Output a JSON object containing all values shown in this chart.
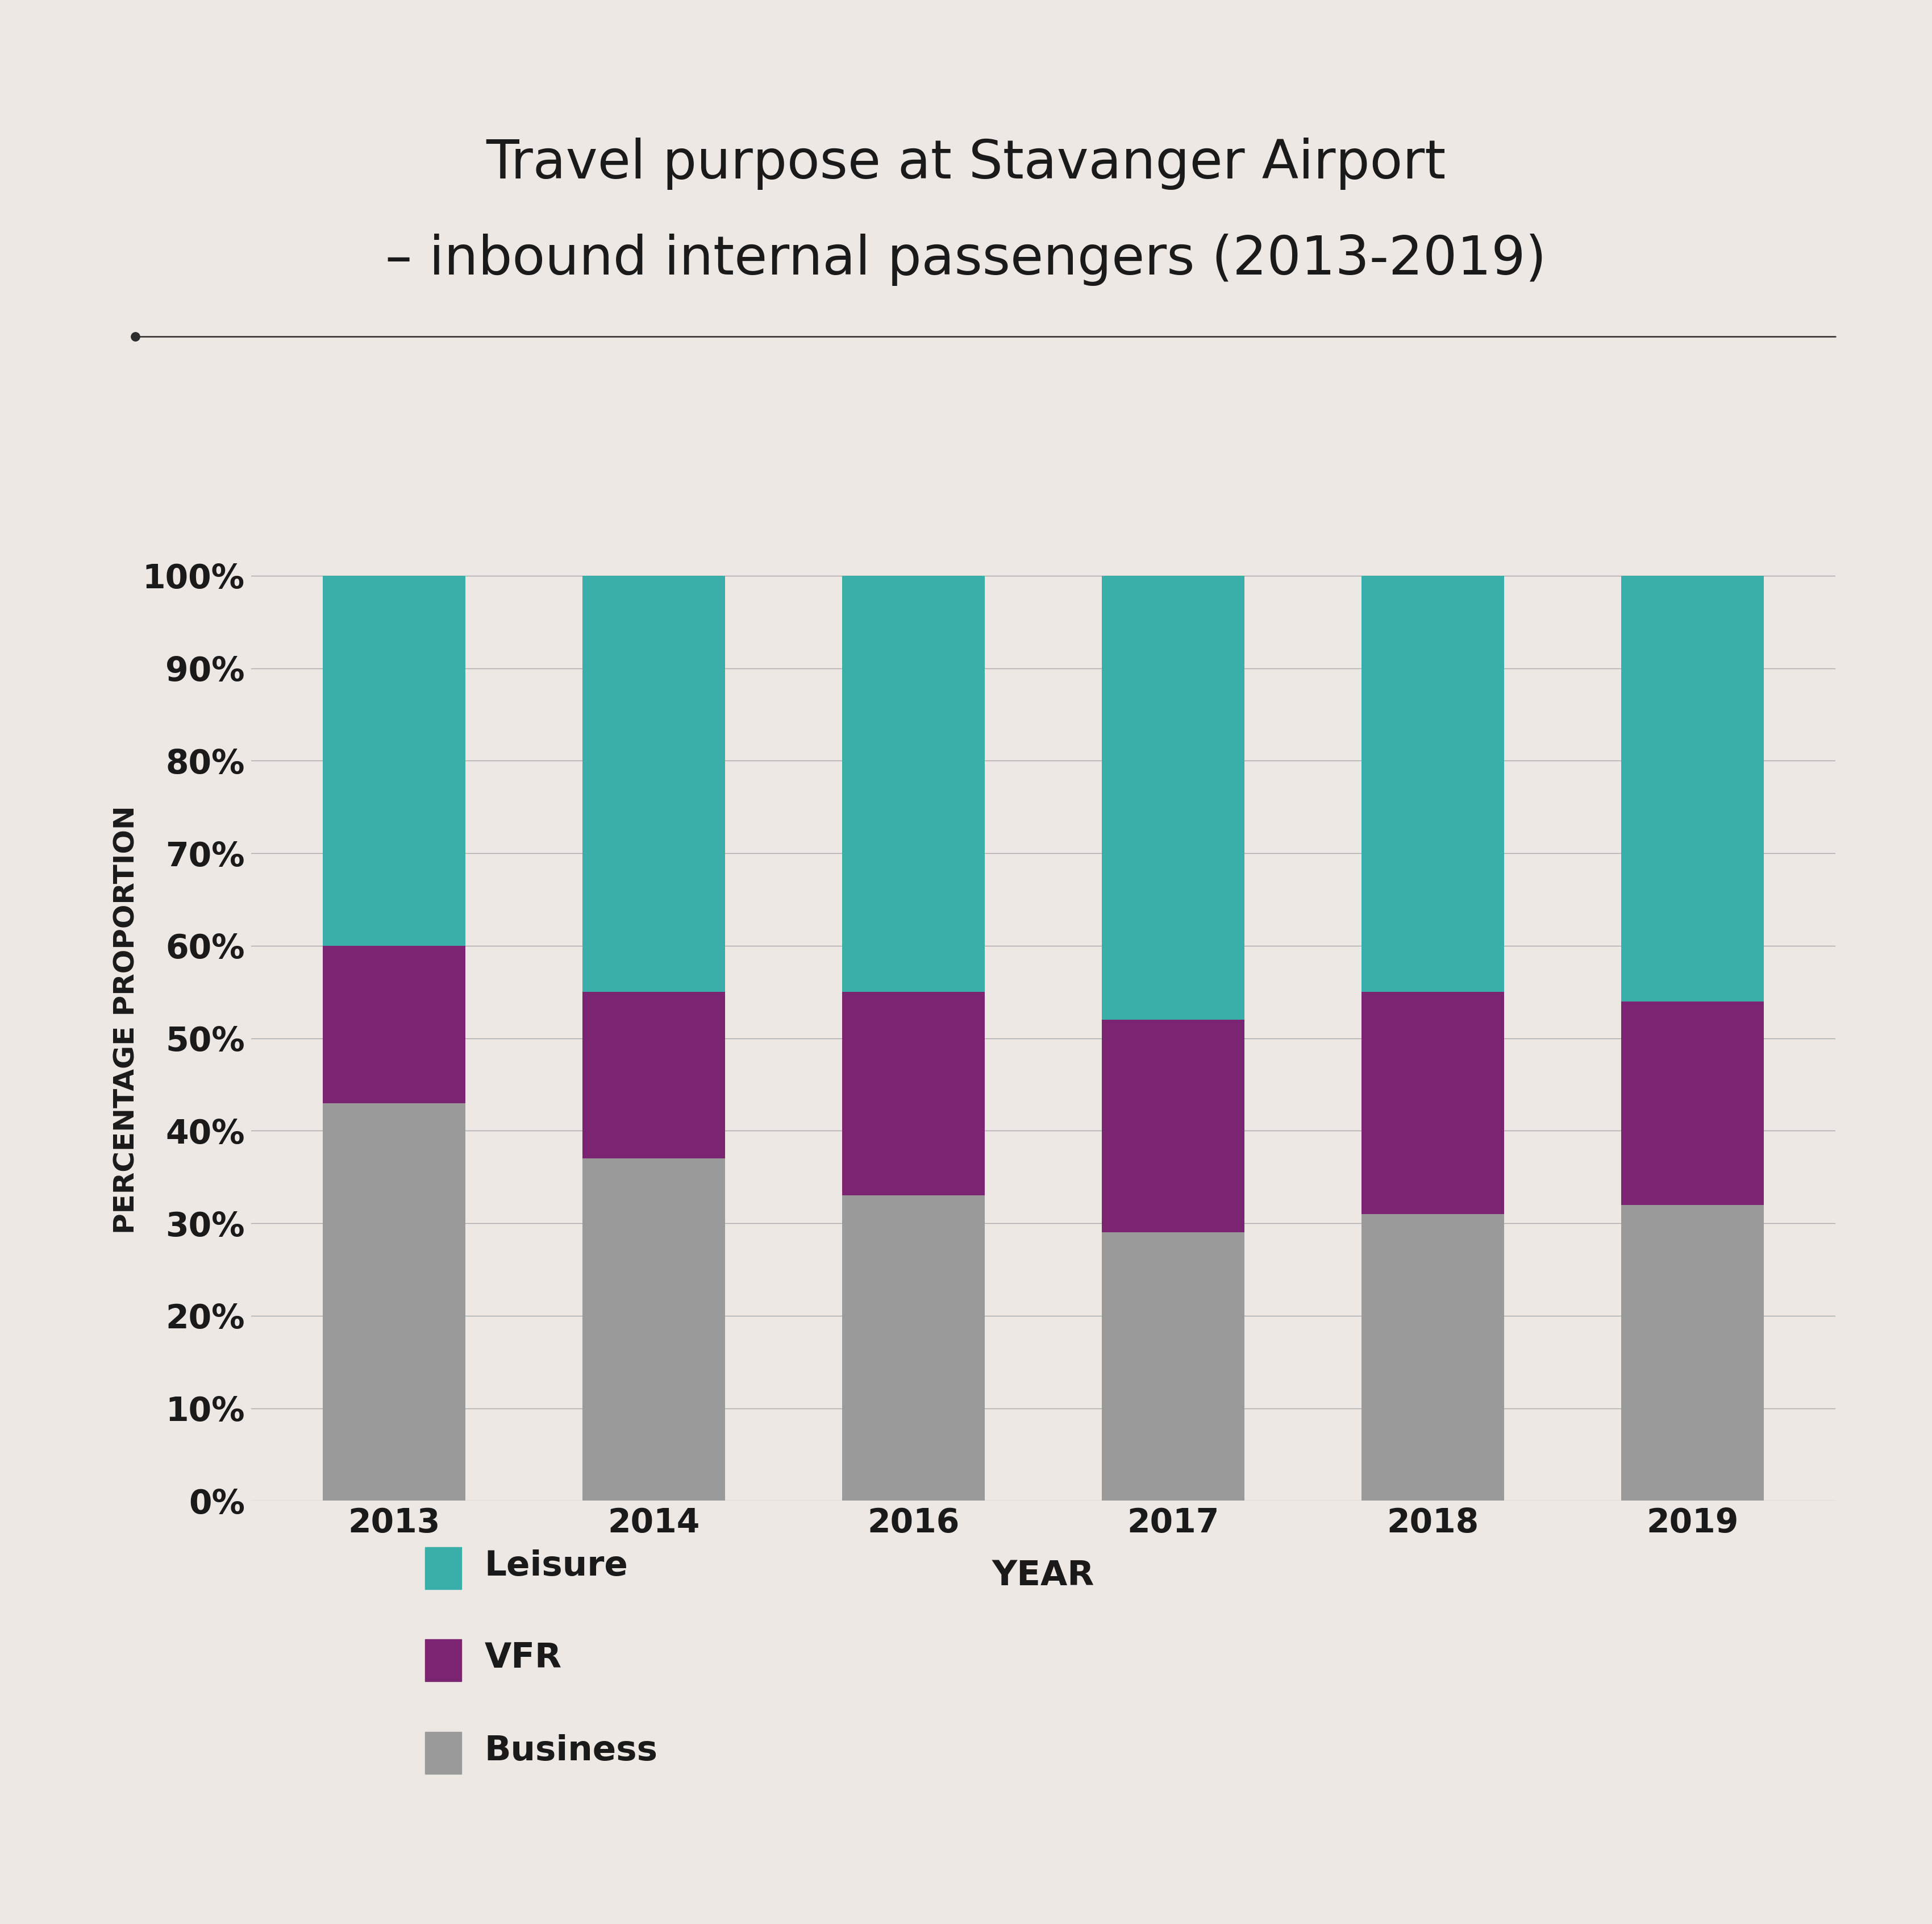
{
  "title_line1": "Travel purpose at Stavanger Airport",
  "title_line2": "– inbound internal passengers (2013-2019)",
  "xlabel": "YEAR",
  "ylabel": "PERCENTAGE PROPORTION",
  "background_color": "#EDE8E3",
  "plot_background_color": "#EDE8E3",
  "years": [
    "2013",
    "2014",
    "2016",
    "2017",
    "2018",
    "2019"
  ],
  "business": [
    43,
    37,
    33,
    29,
    31,
    32
  ],
  "vfr": [
    17,
    18,
    22,
    23,
    24,
    22
  ],
  "leisure": [
    40,
    45,
    45,
    48,
    45,
    46
  ],
  "colors": {
    "business": "#9A9A9A",
    "vfr": "#7B2472",
    "leisure": "#3AAFA9"
  },
  "yticks": [
    0,
    10,
    20,
    30,
    40,
    50,
    60,
    70,
    80,
    90,
    100
  ],
  "ytick_labels": [
    "0%",
    "10%",
    "20%",
    "30%",
    "40%",
    "50%",
    "60%",
    "70%",
    "80%",
    "90%",
    "100%"
  ]
}
